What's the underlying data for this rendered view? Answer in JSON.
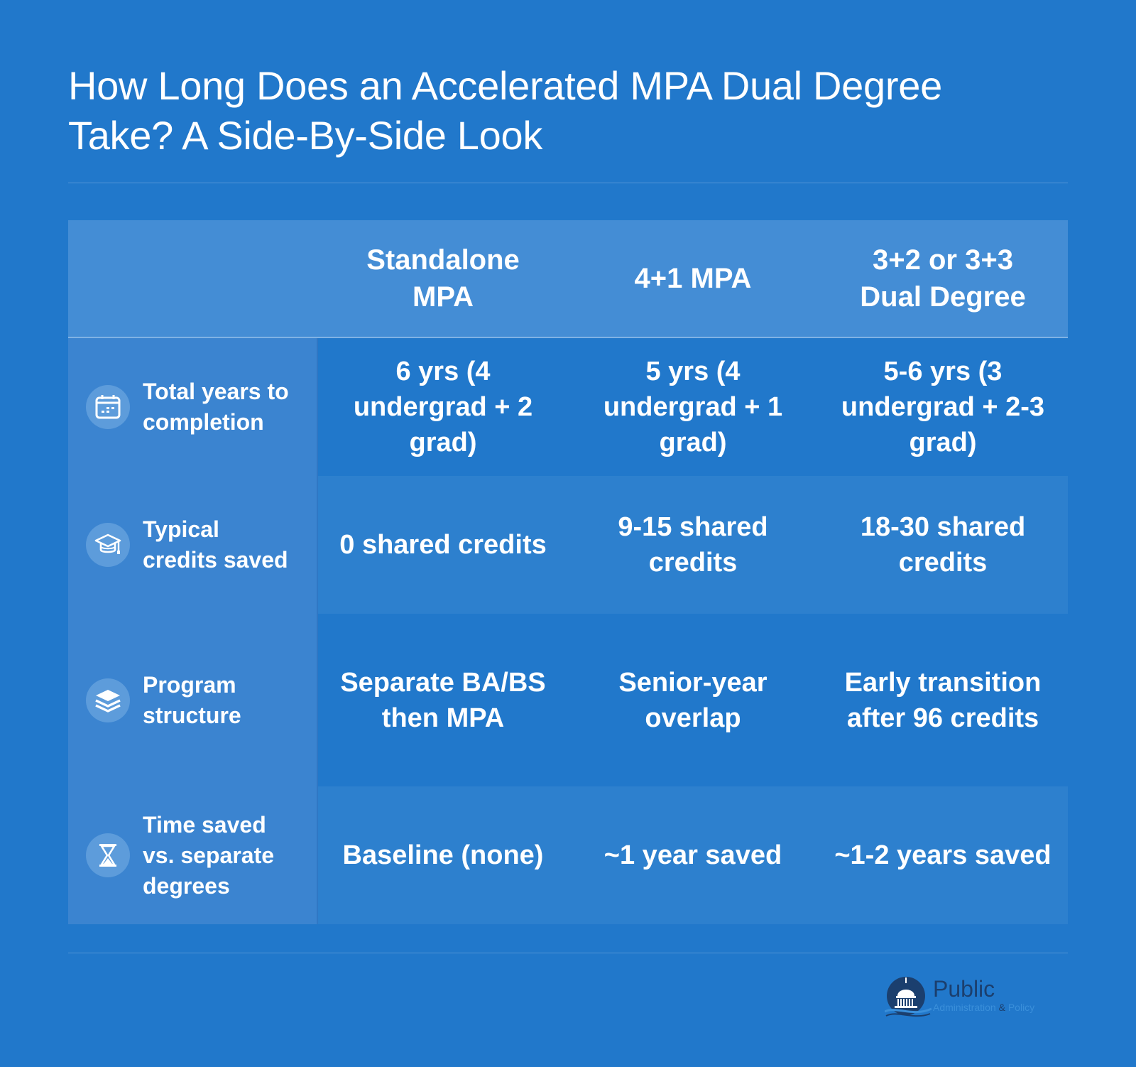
{
  "title": "How Long Does an Accelerated MPA Dual Degree Take? A Side-By-Side Look",
  "columns": [
    "Standalone MPA",
    "4+1 MPA",
    "3+2 or 3+3 Dual Degree"
  ],
  "rows": [
    {
      "label": "Total years to completion",
      "icon": "calendar-icon",
      "cells": [
        "6 yrs (4 undergrad + 2 grad)",
        "5 yrs (4 undergrad + 1 grad)",
        "5-6 yrs (3 undergrad + 2-3 grad)"
      ]
    },
    {
      "label": "Typical credits saved",
      "icon": "graduation-cap-icon",
      "cells": [
        "0 shared credits",
        "9-15 shared credits",
        "18-30 shared credits"
      ]
    },
    {
      "label": "Program structure",
      "icon": "layers-icon",
      "cells": [
        "Separate BA/BS then MPA",
        "Senior-year overlap",
        "Early transition after 96 credits"
      ]
    },
    {
      "label": "Time saved vs. separate degrees",
      "icon": "hourglass-icon",
      "cells": [
        "Baseline (none)",
        "~1 year saved",
        "~1-2 years saved"
      ]
    }
  ],
  "logo": {
    "word": "Public",
    "sub_left": "Administration",
    "amp": "&",
    "sub_right": "Policy"
  },
  "colors": {
    "background": "#2178cb",
    "header_bg": "#448dd5",
    "label_bg": "#3b84d0",
    "row_alt_bg": "#2d80ce",
    "logo_navy": "#1b3f6e"
  }
}
